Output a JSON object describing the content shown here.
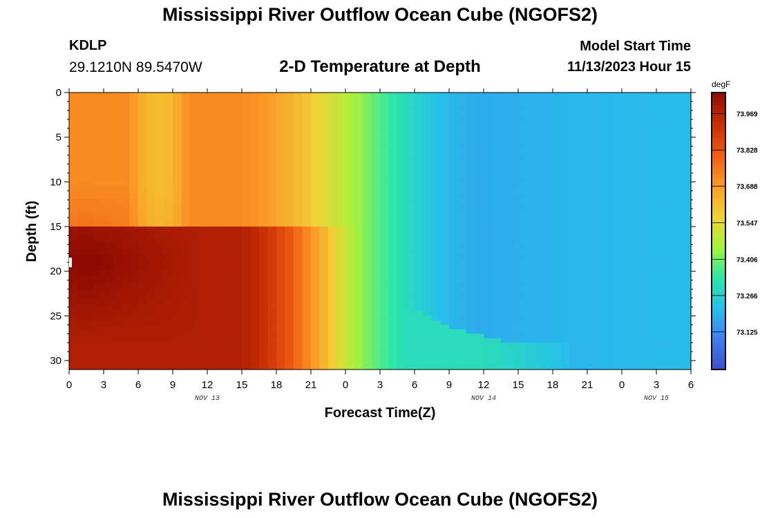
{
  "header": {
    "title": "Mississippi River Outflow Ocean Cube (NGOFS2)",
    "station": "KDLP",
    "coords": "29.1210N  89.5470W",
    "subtitle": "2-D Temperature at Depth",
    "start_label": "Model Start Time",
    "start_value": "11/13/2023 Hour 15"
  },
  "footer": {
    "title": "Mississippi River Outflow Ocean Cube (NGOFS2)"
  },
  "chart_data": {
    "type": "heatmap",
    "title": "2-D Temperature at Depth",
    "xlabel": "Forecast Time(Z)",
    "ylabel": "Depth (ft)",
    "x_range_hours": [
      0,
      54
    ],
    "y_range_ft": [
      0,
      31
    ],
    "y_inverted": true,
    "x_ticks": [
      "0",
      "3",
      "6",
      "9",
      "12",
      "15",
      "18",
      "21",
      "0",
      "3",
      "6",
      "9",
      "12",
      "15",
      "18",
      "21",
      "0",
      "3",
      "6"
    ],
    "y_ticks": [
      "0",
      "5",
      "10",
      "15",
      "20",
      "25",
      "30"
    ],
    "day_labels": [
      {
        "text": "NOV 13",
        "hour": 12
      },
      {
        "text": "NOV 14",
        "hour": 36
      },
      {
        "text": "NOV 15",
        "hour": 51
      }
    ],
    "colorbar": {
      "unit": "degF",
      "min": 72.98,
      "max": 74.05,
      "tick_values": [
        73.969,
        73.828,
        73.688,
        73.547,
        73.406,
        73.266,
        73.125
      ],
      "tick_labels": [
        "73.969",
        "73.828",
        "73.688",
        "73.547",
        "73.406",
        "73.266",
        "73.125"
      ],
      "colors": [
        "#3c4fc9",
        "#3f7df0",
        "#27c0ea",
        "#2ee7a4",
        "#a8f33c",
        "#f0d235",
        "#fb9a26",
        "#ee5a14",
        "#c72d05",
        "#8e0b02"
      ]
    },
    "cell_hours": 0.75,
    "cell_ft": 0.5,
    "field_description": "estimated temperature field, degF"
  }
}
